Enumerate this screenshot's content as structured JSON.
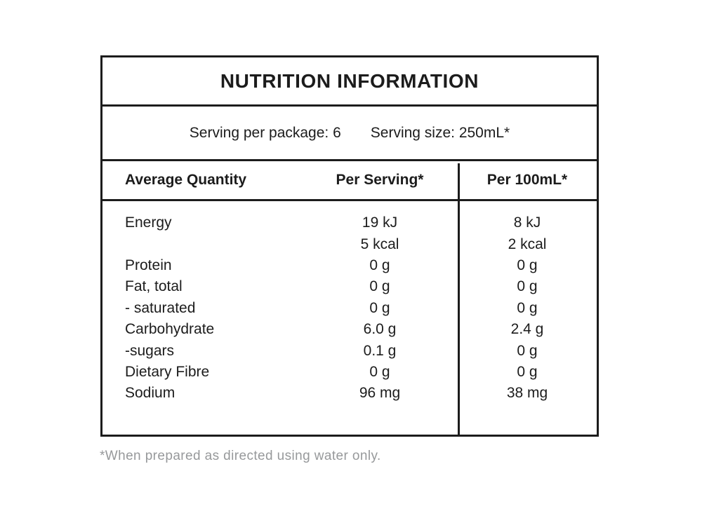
{
  "label": {
    "title": "NUTRITION INFORMATION",
    "serving": {
      "per_package": "Serving per package: 6",
      "serving_size": "Serving size: 250mL*"
    },
    "table": {
      "columns": {
        "quantity": "Average Quantity",
        "per_serving": "Per Serving*",
        "per_100ml": "Per 100mL*"
      },
      "rows": [
        {
          "name": "Energy",
          "per_serving": "19 kJ",
          "per_100ml": "8 kJ"
        },
        {
          "name": "",
          "per_serving": "5 kcal",
          "per_100ml": "2 kcal"
        },
        {
          "name": "Protein",
          "per_serving": "0 g",
          "per_100ml": "0 g"
        },
        {
          "name": "Fat, total",
          "per_serving": "0 g",
          "per_100ml": "0 g"
        },
        {
          "name": "- saturated",
          "per_serving": "0 g",
          "per_100ml": "0 g"
        },
        {
          "name": "Carbohydrate",
          "per_serving": "6.0 g",
          "per_100ml": "2.4 g"
        },
        {
          "name": "-sugars",
          "per_serving": "0.1 g",
          "per_100ml": "0 g"
        },
        {
          "name": "Dietary Fibre",
          "per_serving": "0 g",
          "per_100ml": "0 g"
        },
        {
          "name": "Sodium",
          "per_serving": "96 mg",
          "per_100ml": "38 mg"
        }
      ]
    },
    "footnote": "*When prepared as directed using water only.",
    "colors": {
      "line": "#1c1c1c",
      "text": "#1c1c1c",
      "footnote_text": "#97999b",
      "background": "#ffffff"
    }
  }
}
